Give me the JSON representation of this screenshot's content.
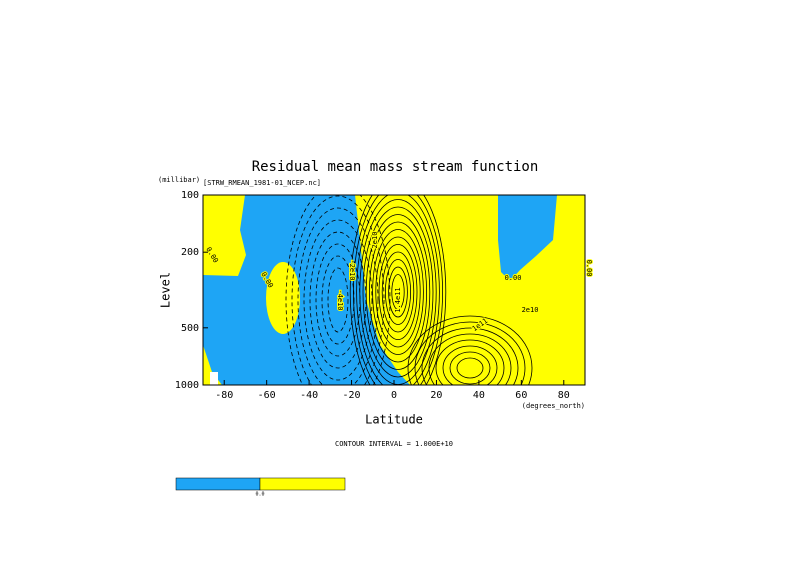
{
  "chart_data": {
    "type": "contour",
    "title": "Residual mean mass stream function",
    "subtitle": "[STRW_RMEAN_1981-01_NCEP.nc]",
    "y_unit": "(millibar)",
    "x_unit": "(degrees_north)",
    "xlabel": "Latitude",
    "ylabel": "Level",
    "xlim": [
      -90,
      90
    ],
    "xticks": [
      -80,
      -60,
      -40,
      -20,
      0,
      20,
      40,
      60,
      80
    ],
    "ylim": [
      1000,
      100
    ],
    "yticks": [
      100,
      200,
      500,
      1000
    ],
    "y_log": true,
    "colors": {
      "negative": "#1ea5f5",
      "positive": "#ffff00"
    },
    "note": "CONTOUR INTERVAL = 1.000E+10",
    "contour_labels": [
      "0.00",
      "0.00",
      "0.00",
      "0.00",
      "-4e10",
      "-2e10",
      "1.4e11",
      "2e10",
      "2e10",
      "1e11"
    ],
    "colorbar_labels": [
      "0.0"
    ]
  }
}
